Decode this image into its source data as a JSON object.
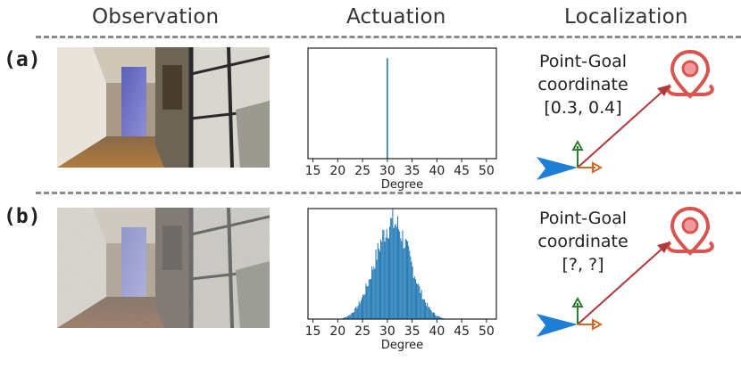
{
  "headers": {
    "observation": "Observation",
    "actuation": "Actuation",
    "localization": "Localization"
  },
  "rows": [
    {
      "label": "(a)",
      "goal_line1": "Point-Goal",
      "goal_line2": "coordinate",
      "goal_value": "[0.3, 0.4]",
      "noisy_observation": false
    },
    {
      "label": "(b)",
      "goal_line1": "Point-Goal",
      "goal_line2": "coordinate",
      "goal_value": "[?, ?]",
      "noisy_observation": true
    }
  ],
  "chart_data": [
    {
      "type": "bar",
      "xlabel": "Degree",
      "xticks": [
        15,
        20,
        25,
        30,
        35,
        40,
        45,
        50
      ],
      "xlim": [
        14,
        52
      ],
      "distribution": "single spike",
      "values": [
        {
          "x": 30,
          "y": 1.0
        }
      ],
      "ylim": [
        0,
        1.1
      ],
      "bar_color": "#1f77b4"
    },
    {
      "type": "bar",
      "xlabel": "Degree",
      "xticks": [
        15,
        20,
        25,
        30,
        35,
        40,
        45,
        50
      ],
      "xlim": [
        14,
        52
      ],
      "distribution": "gaussian",
      "mean": 31,
      "std": 3.6,
      "range": [
        19,
        44
      ],
      "ylim": [
        0,
        1.1
      ],
      "bar_color": "#1f77b4"
    }
  ],
  "colors": {
    "agent": "#1f7fd6",
    "arrow_goal": "#b03a3a",
    "axis_up": "#2e7d32",
    "axis_right": "#d2691e",
    "pin": "#d9534f",
    "dash": "#8a8a8a"
  },
  "icons": [
    "map-pin-icon",
    "agent-arrow-icon"
  ]
}
